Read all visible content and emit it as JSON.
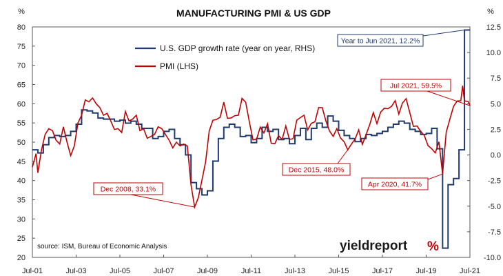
{
  "chart_data": {
    "type": "line",
    "title": "MANUFACTURING PMI & US GDP",
    "left_unit": "%",
    "right_unit": "%",
    "left_axis": {
      "min": 20,
      "max": 80,
      "ticks": [
        "20",
        "25",
        "30",
        "35",
        "40",
        "45",
        "50",
        "55",
        "60",
        "65",
        "70",
        "75",
        "80"
      ]
    },
    "right_axis": {
      "min": -10.0,
      "max": 12.5,
      "ticks": [
        "-10.0",
        "-7.5",
        "-5.0",
        "-2.5",
        "0.0",
        "2.5",
        "5.0",
        "7.5",
        "10.0",
        "12.5"
      ]
    },
    "x_axis": {
      "start": "2001-07",
      "end": "2021-07",
      "ticks": [
        "Jul-01",
        "Jul-03",
        "Jul-05",
        "Jul-07",
        "Jul-09",
        "Jul-11",
        "Jul-13",
        "Jul-15",
        "Jul-17",
        "Jul-19",
        "Jul-21"
      ]
    },
    "grid": false,
    "series": [
      {
        "name": "U.S. GDP growth rate (year on year, RHS)",
        "axis": "right",
        "color": "#1f3a6e",
        "points": [
          [
            "2001-07",
            0.5
          ],
          [
            "2001-10",
            0.2
          ],
          [
            "2002-01",
            1.0
          ],
          [
            "2002-04",
            1.7
          ],
          [
            "2002-07",
            1.9
          ],
          [
            "2002-10",
            1.8
          ],
          [
            "2003-01",
            1.9
          ],
          [
            "2003-04",
            2.3
          ],
          [
            "2003-07",
            3.0
          ],
          [
            "2003-10",
            4.4
          ],
          [
            "2004-01",
            4.3
          ],
          [
            "2004-04",
            4.1
          ],
          [
            "2004-07",
            3.6
          ],
          [
            "2004-10",
            3.5
          ],
          [
            "2005-01",
            3.5
          ],
          [
            "2005-04",
            3.3
          ],
          [
            "2005-07",
            3.4
          ],
          [
            "2005-10",
            3.1
          ],
          [
            "2006-01",
            3.3
          ],
          [
            "2006-04",
            3.0
          ],
          [
            "2006-07",
            2.6
          ],
          [
            "2006-10",
            2.6
          ],
          [
            "2007-01",
            1.6
          ],
          [
            "2007-04",
            1.8
          ],
          [
            "2007-07",
            2.3
          ],
          [
            "2007-10",
            2.5
          ],
          [
            "2008-01",
            1.6
          ],
          [
            "2008-04",
            1.0
          ],
          [
            "2008-07",
            0.0
          ],
          [
            "2008-10",
            -2.7
          ],
          [
            "2009-01",
            -3.3
          ],
          [
            "2009-04",
            -3.9
          ],
          [
            "2009-07",
            -3.5
          ],
          [
            "2009-10",
            -0.6
          ],
          [
            "2010-01",
            1.6
          ],
          [
            "2010-04",
            2.7
          ],
          [
            "2010-07",
            3.0
          ],
          [
            "2010-10",
            2.7
          ],
          [
            "2011-01",
            1.8
          ],
          [
            "2011-04",
            1.9
          ],
          [
            "2011-07",
            1.2
          ],
          [
            "2011-10",
            1.6
          ],
          [
            "2012-01",
            2.7
          ],
          [
            "2012-04",
            2.3
          ],
          [
            "2012-07",
            2.5
          ],
          [
            "2012-10",
            1.5
          ],
          [
            "2013-01",
            1.6
          ],
          [
            "2013-04",
            1.1
          ],
          [
            "2013-07",
            1.9
          ],
          [
            "2013-10",
            2.6
          ],
          [
            "2014-01",
            1.5
          ],
          [
            "2014-04",
            2.6
          ],
          [
            "2014-07",
            3.1
          ],
          [
            "2014-10",
            2.7
          ],
          [
            "2015-01",
            3.8
          ],
          [
            "2015-04",
            3.3
          ],
          [
            "2015-07",
            2.4
          ],
          [
            "2015-10",
            1.9
          ],
          [
            "2016-01",
            1.6
          ],
          [
            "2016-04",
            1.3
          ],
          [
            "2016-07",
            1.6
          ],
          [
            "2016-10",
            2.0
          ],
          [
            "2017-01",
            1.9
          ],
          [
            "2017-04",
            2.1
          ],
          [
            "2017-07",
            2.3
          ],
          [
            "2017-10",
            2.7
          ],
          [
            "2018-01",
            3.0
          ],
          [
            "2018-04",
            3.3
          ],
          [
            "2018-07",
            3.1
          ],
          [
            "2018-10",
            2.5
          ],
          [
            "2019-01",
            2.3
          ],
          [
            "2019-04",
            2.0
          ],
          [
            "2019-07",
            2.1
          ],
          [
            "2019-10",
            2.6
          ],
          [
            "2020-01",
            0.6
          ],
          [
            "2020-04",
            -9.1
          ],
          [
            "2020-07",
            -2.9
          ],
          [
            "2020-10",
            -2.3
          ],
          [
            "2021-01",
            0.5
          ],
          [
            "2021-04",
            12.2
          ],
          [
            "2021-07",
            12.2
          ]
        ]
      },
      {
        "name": "PMI (LHS)",
        "axis": "left",
        "color": "#c00000",
        "points": [
          [
            "2001-07",
            43.5
          ],
          [
            "2001-09",
            47.0
          ],
          [
            "2001-10",
            42.0
          ],
          [
            "2001-12",
            48.0
          ],
          [
            "2002-02",
            52.0
          ],
          [
            "2002-04",
            53.5
          ],
          [
            "2002-06",
            53.0
          ],
          [
            "2002-08",
            50.5
          ],
          [
            "2002-10",
            49.5
          ],
          [
            "2002-12",
            54.0
          ],
          [
            "2003-02",
            50.0
          ],
          [
            "2003-04",
            46.5
          ],
          [
            "2003-06",
            49.0
          ],
          [
            "2003-08",
            55.0
          ],
          [
            "2003-10",
            57.0
          ],
          [
            "2003-12",
            61.0
          ],
          [
            "2004-02",
            60.5
          ],
          [
            "2004-04",
            61.5
          ],
          [
            "2004-06",
            60.0
          ],
          [
            "2004-08",
            59.0
          ],
          [
            "2004-10",
            57.0
          ],
          [
            "2004-12",
            57.5
          ],
          [
            "2005-02",
            55.5
          ],
          [
            "2005-04",
            53.3
          ],
          [
            "2005-06",
            53.5
          ],
          [
            "2005-08",
            52.5
          ],
          [
            "2005-10",
            58.0
          ],
          [
            "2005-12",
            55.5
          ],
          [
            "2006-02",
            56.0
          ],
          [
            "2006-04",
            57.0
          ],
          [
            "2006-06",
            53.0
          ],
          [
            "2006-08",
            53.5
          ],
          [
            "2006-10",
            51.0
          ],
          [
            "2006-12",
            51.5
          ],
          [
            "2007-02",
            52.0
          ],
          [
            "2007-04",
            54.0
          ],
          [
            "2007-06",
            53.5
          ],
          [
            "2007-08",
            52.0
          ],
          [
            "2007-10",
            50.5
          ],
          [
            "2007-12",
            48.5
          ],
          [
            "2008-02",
            50.0
          ],
          [
            "2008-04",
            49.0
          ],
          [
            "2008-06",
            49.5
          ],
          [
            "2008-08",
            49.0
          ],
          [
            "2008-10",
            38.9
          ],
          [
            "2008-12",
            33.1
          ],
          [
            "2009-02",
            35.5
          ],
          [
            "2009-04",
            40.1
          ],
          [
            "2009-06",
            44.8
          ],
          [
            "2009-08",
            52.9
          ],
          [
            "2009-10",
            55.7
          ],
          [
            "2009-12",
            55.9
          ],
          [
            "2010-02",
            56.5
          ],
          [
            "2010-04",
            60.4
          ],
          [
            "2010-06",
            56.2
          ],
          [
            "2010-08",
            56.3
          ],
          [
            "2010-10",
            56.9
          ],
          [
            "2010-12",
            57.0
          ],
          [
            "2011-02",
            61.4
          ],
          [
            "2011-04",
            60.4
          ],
          [
            "2011-06",
            55.3
          ],
          [
            "2011-08",
            50.6
          ],
          [
            "2011-10",
            50.8
          ],
          [
            "2011-12",
            53.9
          ],
          [
            "2012-02",
            52.4
          ],
          [
            "2012-04",
            54.8
          ],
          [
            "2012-06",
            49.7
          ],
          [
            "2012-08",
            49.6
          ],
          [
            "2012-10",
            51.7
          ],
          [
            "2012-12",
            50.7
          ],
          [
            "2013-02",
            54.2
          ],
          [
            "2013-04",
            50.7
          ],
          [
            "2013-06",
            50.9
          ],
          [
            "2013-08",
            55.7
          ],
          [
            "2013-10",
            56.4
          ],
          [
            "2013-12",
            57.0
          ],
          [
            "2014-02",
            53.2
          ],
          [
            "2014-04",
            54.9
          ],
          [
            "2014-06",
            55.3
          ],
          [
            "2014-08",
            59.0
          ],
          [
            "2014-10",
            59.0
          ],
          [
            "2014-12",
            55.5
          ],
          [
            "2015-02",
            52.9
          ],
          [
            "2015-04",
            51.5
          ],
          [
            "2015-06",
            53.5
          ],
          [
            "2015-08",
            51.1
          ],
          [
            "2015-10",
            50.1
          ],
          [
            "2015-12",
            48.0
          ],
          [
            "2016-02",
            49.5
          ],
          [
            "2016-04",
            50.8
          ],
          [
            "2016-06",
            53.2
          ],
          [
            "2016-08",
            49.4
          ],
          [
            "2016-10",
            51.9
          ],
          [
            "2016-12",
            54.5
          ],
          [
            "2017-02",
            57.7
          ],
          [
            "2017-04",
            54.8
          ],
          [
            "2017-06",
            57.8
          ],
          [
            "2017-08",
            58.8
          ],
          [
            "2017-10",
            58.7
          ],
          [
            "2017-12",
            59.3
          ],
          [
            "2018-02",
            60.8
          ],
          [
            "2018-04",
            57.3
          ],
          [
            "2018-06",
            60.2
          ],
          [
            "2018-08",
            61.3
          ],
          [
            "2018-10",
            57.7
          ],
          [
            "2018-12",
            54.1
          ],
          [
            "2019-02",
            54.2
          ],
          [
            "2019-04",
            52.8
          ],
          [
            "2019-06",
            51.7
          ],
          [
            "2019-08",
            49.1
          ],
          [
            "2019-10",
            48.3
          ],
          [
            "2019-12",
            47.2
          ],
          [
            "2020-02",
            50.1
          ],
          [
            "2020-04",
            41.7
          ],
          [
            "2020-06",
            52.6
          ],
          [
            "2020-08",
            56.0
          ],
          [
            "2020-10",
            59.3
          ],
          [
            "2020-12",
            60.7
          ],
          [
            "2021-02",
            60.8
          ],
          [
            "2021-03",
            64.7
          ],
          [
            "2021-04",
            60.7
          ],
          [
            "2021-06",
            60.6
          ],
          [
            "2021-07",
            59.5
          ]
        ]
      }
    ],
    "annotations": [
      {
        "text": "Year to Jun 2021, 12.2%",
        "color": "#1f3a6e"
      },
      {
        "text": "Jul 2021, 59.5%",
        "color": "#c00000"
      },
      {
        "text": "Dec 2008, 33.1%",
        "color": "#c00000"
      },
      {
        "text": "Dec 2015, 48.0%",
        "color": "#c00000"
      },
      {
        "text": "Apr 2020, 41.7%",
        "color": "#c00000"
      }
    ]
  },
  "source_note": "source: ISM, Bureau of Economic Analysis",
  "brand": {
    "name": "yieldreport",
    "symbol": "%"
  }
}
